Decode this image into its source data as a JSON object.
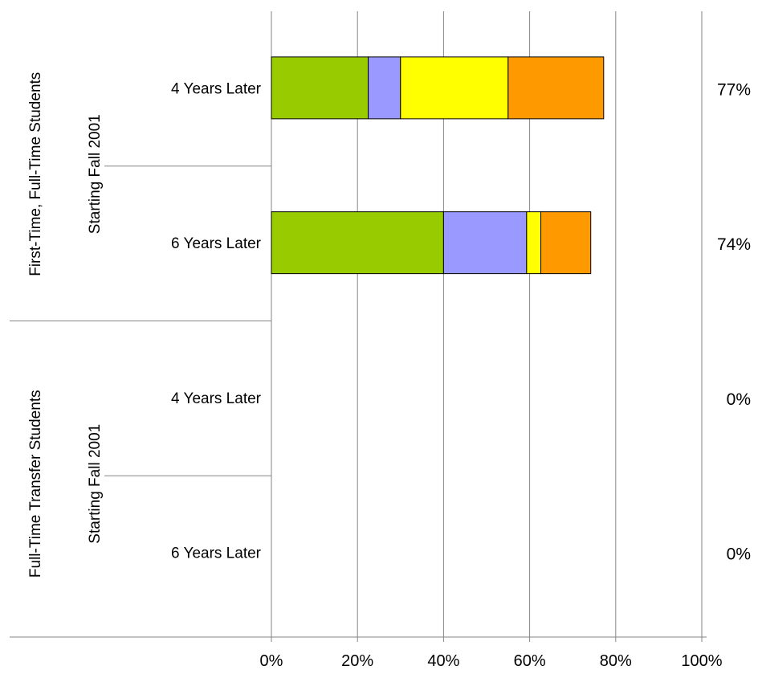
{
  "chart_data": {
    "type": "bar",
    "orientation": "horizontal",
    "stacked": true,
    "title": "",
    "xlabel": "",
    "ylabel": "",
    "xlim": [
      0,
      100
    ],
    "x_ticks": [
      "0%",
      "20%",
      "40%",
      "60%",
      "80%",
      "100%"
    ],
    "grid": true,
    "legend": "none",
    "groups": [
      {
        "label": "First-Time, Full-Time Students",
        "sublabel": "Starting Fall 2001",
        "rows": [
          {
            "label": "4 Years Later",
            "total_label": "77%",
            "segments": [
              22.5,
              7.5,
              25,
              22.2
            ]
          },
          {
            "label": "6 Years Later",
            "total_label": "74%",
            "segments": [
              40,
              19.3,
              3.3,
              11.6
            ]
          }
        ]
      },
      {
        "label": "Full-Time Transfer Students",
        "sublabel": "Starting Fall 2001",
        "rows": [
          {
            "label": "4 Years Later",
            "total_label": "0%",
            "segments": [
              0,
              0,
              0,
              0
            ]
          },
          {
            "label": "6 Years Later",
            "total_label": "0%",
            "segments": [
              0,
              0,
              0,
              0
            ]
          }
        ]
      }
    ],
    "segment_colors": [
      "#99cc00",
      "#9999ff",
      "#ffff00",
      "#ff9900"
    ]
  }
}
